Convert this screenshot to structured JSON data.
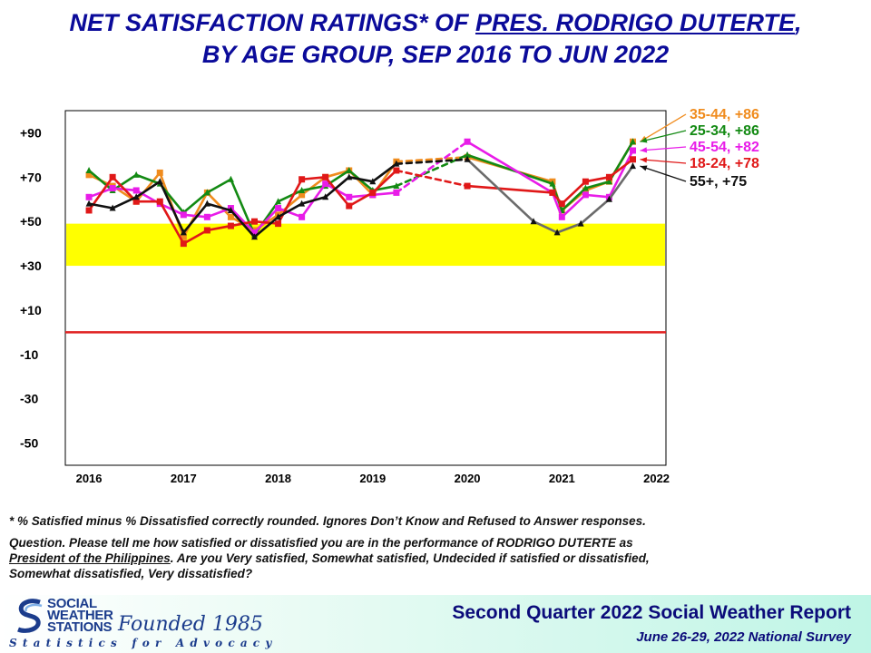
{
  "header": {
    "title_line1_pre": "NET SATISFACTION  RATINGS* OF ",
    "title_line1_name": "PRES. RODRIGO DUTERTE",
    "title_line1_post": ",",
    "title_line2": "BY AGE GROUP, SEP 2016 TO JUN 2022"
  },
  "chart_data": {
    "type": "line",
    "title": "NET SATISFACTION RATINGS* OF PRES. RODRIGO DUTERTE, BY AGE GROUP, SEP 2016 TO JUN 2022",
    "xlabel": "",
    "ylabel": "",
    "ylim": [
      -60,
      100
    ],
    "xlim": [
      2015.75,
      2022.1
    ],
    "y_ticks": [
      90,
      70,
      50,
      30,
      10,
      -10,
      -30,
      -50
    ],
    "y_tick_labels": [
      "+90",
      "+70",
      "+50",
      "+30",
      "+10",
      "-10",
      "-30",
      "-50"
    ],
    "x_ticks": [
      2016,
      2017,
      2018,
      2019,
      2020,
      2021,
      2022
    ],
    "x_tick_labels": [
      "2016",
      "2017",
      "2018",
      "2019",
      "2020",
      "2021",
      "2022"
    ],
    "band": {
      "from": 30,
      "to": 49,
      "color": "#ffff00"
    },
    "zero_line_color": "#e02020",
    "series": [
      {
        "name": "35-44",
        "label": "35-44, +86",
        "color": "#f08c1e",
        "marker": "square",
        "x": [
          2016.0,
          2016.25,
          2016.5,
          2016.75,
          2017.0,
          2017.25,
          2017.5,
          2017.75,
          2018.0,
          2018.25,
          2018.5,
          2018.75,
          2019.0,
          2019.25,
          2020.0,
          2020.9,
          2021.0,
          2021.25,
          2021.5,
          2021.75
        ],
        "y": [
          71,
          66,
          59,
          72,
          43,
          63,
          52,
          46,
          53,
          62,
          70,
          73,
          62,
          77,
          79,
          68,
          55,
          64,
          68,
          86
        ],
        "dashed_segments": [
          13
        ]
      },
      {
        "name": "25-34",
        "label": "25-34, +86",
        "color": "#138a13",
        "marker": "triangle",
        "x": [
          2016.0,
          2016.25,
          2016.5,
          2016.75,
          2017.0,
          2017.25,
          2017.5,
          2017.75,
          2018.0,
          2018.25,
          2018.5,
          2018.75,
          2019.0,
          2019.25,
          2020.0,
          2020.9,
          2021.0,
          2021.25,
          2021.5,
          2021.75
        ],
        "y": [
          73,
          64,
          71,
          67,
          54,
          63,
          69,
          44,
          59,
          64,
          66,
          73,
          64,
          66,
          80,
          67,
          55,
          65,
          68,
          86
        ],
        "dashed_segments": [
          13
        ]
      },
      {
        "name": "45-54",
        "label": "45-54, +82",
        "color": "#e81ce8",
        "marker": "square",
        "x": [
          2016.0,
          2016.25,
          2016.5,
          2016.75,
          2017.0,
          2017.25,
          2017.5,
          2017.75,
          2018.0,
          2018.25,
          2018.5,
          2018.75,
          2019.0,
          2019.25,
          2020.0,
          2020.9,
          2021.0,
          2021.25,
          2021.5,
          2021.75
        ],
        "y": [
          61,
          65,
          64,
          58,
          53,
          52,
          56,
          45,
          56,
          52,
          67,
          61,
          62,
          63,
          86,
          63,
          52,
          62,
          61,
          82
        ],
        "dashed_segments": [
          13
        ]
      },
      {
        "name": "18-24",
        "label": "18-24, +78",
        "color": "#e01818",
        "marker": "square",
        "x": [
          2016.0,
          2016.25,
          2016.5,
          2016.75,
          2017.0,
          2017.25,
          2017.5,
          2017.75,
          2018.0,
          2018.25,
          2018.5,
          2018.75,
          2019.0,
          2019.25,
          2020.0,
          2020.9,
          2021.0,
          2021.25,
          2021.5,
          2021.75
        ],
        "y": [
          55,
          70,
          59,
          59,
          40,
          46,
          48,
          50,
          49,
          69,
          70,
          57,
          63,
          73,
          66,
          63,
          58,
          68,
          70,
          78
        ],
        "dashed_segments": [
          13
        ]
      },
      {
        "name": "55+",
        "label": "55+, +75",
        "color": "#111111",
        "marker": "triangle",
        "x": [
          2016.0,
          2016.25,
          2016.5,
          2016.75,
          2017.0,
          2017.25,
          2017.5,
          2017.75,
          2018.0,
          2018.25,
          2018.5,
          2018.75,
          2019.0,
          2019.25,
          2020.0,
          2020.7,
          2020.95,
          2021.2,
          2021.5,
          2021.75
        ],
        "y": [
          58,
          56,
          61,
          68,
          45,
          58,
          55,
          43,
          52,
          58,
          61,
          70,
          68,
          76,
          78,
          50,
          45,
          49,
          60,
          75
        ],
        "dashed_segments": [
          13
        ],
        "grey_segments": [
          14,
          15,
          16,
          17,
          18
        ]
      }
    ]
  },
  "footnotes": {
    "line1": "* % Satisfied  minus  % Dissatisfied  correctly  rounded.  Ignores  Don’t Know  and Refused  to Answer responses.",
    "q_pre": "Question.  Please  tell  me  how  satisfied  or dissatisfied  you  are in the  performance  of  RODRIGO  DUTERTE  as",
    "q_underlined": "President  of  the  Philippines",
    "q_post": ".  Are  you  Very  satisfied,  Somewhat  satisfied,  Undecided  if satisfied  or dissatisfied,",
    "q_line3": "Somewhat  dissatisfied,  Very  dissatisfied?"
  },
  "footer": {
    "logo_line1": "SOCIAL",
    "logo_line2": "WEATHER",
    "logo_line3": "STATIONS",
    "founded": "Founded 1985",
    "tagline": "Statistics for Advocacy",
    "report": "Second Quarter 2022 Social Weather Report",
    "survey": "June 26-29, 2022 National Survey"
  }
}
